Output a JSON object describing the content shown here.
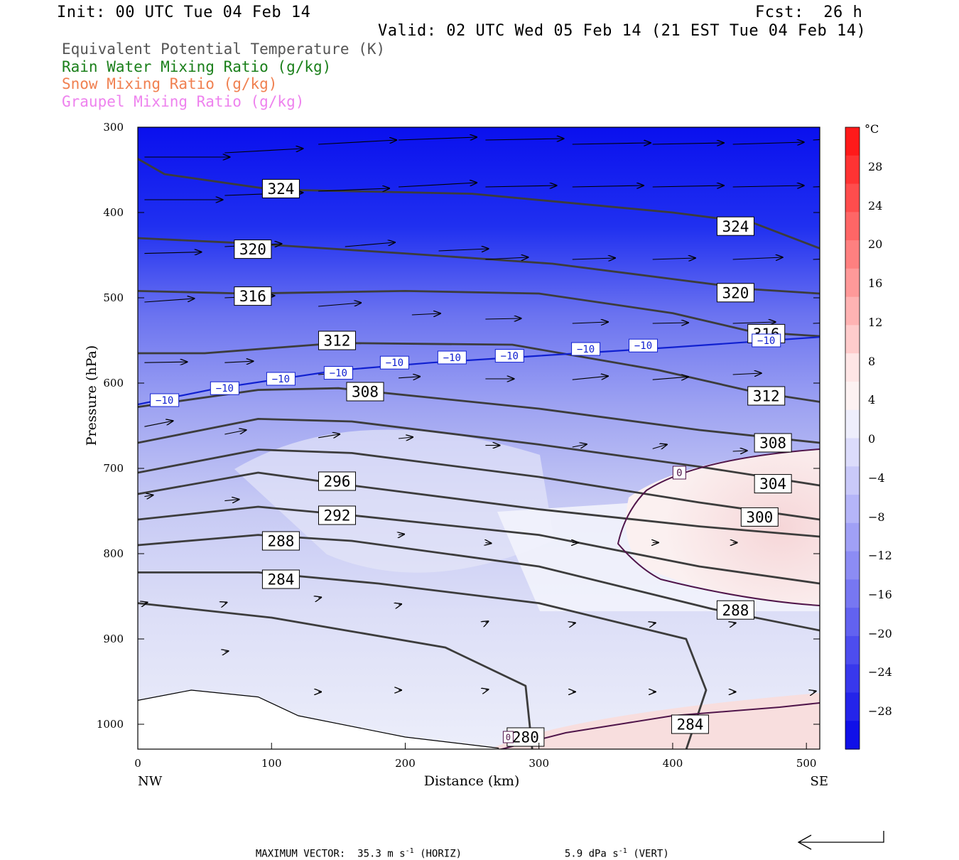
{
  "header": {
    "init": "Init: 00 UTC Tue 04 Feb 14",
    "fcst": "Fcst:  26 h",
    "valid": "Valid: 02 UTC Wed 05 Feb 14 (21 EST Tue 04 Feb 14)"
  },
  "legend": [
    {
      "label": "Equivalent Potential Temperature (K)",
      "color": "#555555"
    },
    {
      "label": "Rain Water Mixing Ratio (g/kg)",
      "color": "#1a7f1a"
    },
    {
      "label": "Snow Mixing Ratio (g/kg)",
      "color": "#f08050"
    },
    {
      "label": "Graupel Mixing Ratio (g/kg)",
      "color": "#ee82ee"
    }
  ],
  "colorbar": {
    "unit": "°C",
    "ticks": [
      "28",
      "24",
      "20",
      "16",
      "12",
      "8",
      "4",
      "0",
      "−4",
      "−8",
      "−12",
      "−16",
      "−20",
      "−24",
      "−28"
    ]
  },
  "footer": {
    "max_vector": "MAXIMUM VECTOR:  35.3 m s",
    "horiz": "(HORIZ)",
    "vert_value": "5.9 dPa s",
    "vert": "(VERT)",
    "exp": "-1"
  },
  "chart_data": {
    "type": "contour-cross-section",
    "xlabel": "Distance (km)",
    "ylabel": "Pressure (hPa)",
    "xlim": [
      0,
      510
    ],
    "ylim": [
      1030,
      300
    ],
    "x_ticks": [
      0,
      100,
      200,
      300,
      400,
      500
    ],
    "y_ticks": [
      300,
      400,
      500,
      600,
      700,
      800,
      900,
      1000
    ],
    "x_end_labels": {
      "left": "NW",
      "right": "SE"
    },
    "theta_e_contours": [
      {
        "label": "324",
        "points": [
          [
            0,
            337
          ],
          [
            20,
            355
          ],
          [
            100,
            373
          ],
          [
            250,
            378
          ],
          [
            400,
            400
          ],
          [
            460,
            412
          ],
          [
            510,
            442
          ]
        ],
        "label_at": [
          107,
          372
        ],
        "label2_at": [
          447,
          416
        ]
      },
      {
        "label": "320",
        "points": [
          [
            0,
            430
          ],
          [
            80,
            436
          ],
          [
            200,
            448
          ],
          [
            310,
            460
          ],
          [
            400,
            478
          ],
          [
            460,
            490
          ],
          [
            510,
            495
          ]
        ],
        "label_at": [
          86,
          443
        ],
        "label2_at": [
          447,
          494
        ]
      },
      {
        "label": "316",
        "points": [
          [
            0,
            492
          ],
          [
            80,
            495
          ],
          [
            200,
            492
          ],
          [
            300,
            495
          ],
          [
            400,
            518
          ],
          [
            460,
            540
          ],
          [
            510,
            545
          ]
        ],
        "label_at": [
          86,
          498
        ],
        "label2_at": [
          470,
          542
        ]
      },
      {
        "label": "312",
        "points": [
          [
            0,
            565
          ],
          [
            50,
            565
          ],
          [
            150,
            553
          ],
          [
            280,
            555
          ],
          [
            390,
            585
          ],
          [
            460,
            610
          ],
          [
            510,
            622
          ]
        ],
        "label_at": [
          149,
          550
        ],
        "label2_at": [
          470,
          615
        ]
      },
      {
        "label": "308",
        "points": [
          [
            0,
            628
          ],
          [
            90,
            608
          ],
          [
            150,
            606
          ],
          [
            300,
            630
          ],
          [
            420,
            655
          ],
          [
            510,
            670
          ]
        ],
        "label_at": [
          170,
          610
        ],
        "label2_at": [
          475,
          670
        ]
      },
      {
        "label": "304",
        "points": [
          [
            0,
            670
          ],
          [
            90,
            642
          ],
          [
            160,
            645
          ],
          [
            300,
            672
          ],
          [
            420,
            698
          ],
          [
            510,
            720
          ]
        ],
        "label2_at": [
          475,
          718
        ]
      },
      {
        "label": "300",
        "points": [
          [
            0,
            705
          ],
          [
            90,
            678
          ],
          [
            160,
            682
          ],
          [
            300,
            710
          ],
          [
            420,
            740
          ],
          [
            510,
            760
          ]
        ],
        "label2_at": [
          465,
          757
        ]
      },
      {
        "label": "296",
        "points": [
          [
            0,
            730
          ],
          [
            90,
            705
          ],
          [
            160,
            720
          ],
          [
            300,
            748
          ],
          [
            420,
            768
          ],
          [
            510,
            780
          ]
        ],
        "label_at": [
          149,
          715
        ]
      },
      {
        "label": "292",
        "points": [
          [
            0,
            760
          ],
          [
            90,
            745
          ],
          [
            160,
            755
          ],
          [
            300,
            778
          ],
          [
            420,
            815
          ],
          [
            510,
            835
          ]
        ],
        "label_at": [
          149,
          755
        ]
      },
      {
        "label": "288",
        "points": [
          [
            0,
            790
          ],
          [
            90,
            778
          ],
          [
            160,
            785
          ],
          [
            300,
            815
          ],
          [
            430,
            865
          ],
          [
            510,
            890
          ]
        ],
        "label_at": [
          107,
          785
        ],
        "label2_at": [
          447,
          866
        ]
      },
      {
        "label": "284",
        "points": [
          [
            0,
            822
          ],
          [
            90,
            822
          ],
          [
            180,
            835
          ],
          [
            300,
            858
          ],
          [
            410,
            900
          ],
          [
            425,
            960
          ],
          [
            410,
            1030
          ]
        ],
        "label_at": [
          107,
          830
        ],
        "label2_at": [
          413,
          1000
        ]
      },
      {
        "label": "280",
        "points": [
          [
            0,
            858
          ],
          [
            100,
            875
          ],
          [
            230,
            910
          ],
          [
            290,
            955
          ],
          [
            295,
            1030
          ]
        ],
        "label_at": [
          290,
          1015
        ]
      }
    ],
    "isotherm_minus10": {
      "label": "−10",
      "points": [
        [
          0,
          625
        ],
        [
          60,
          606
        ],
        [
          150,
          585
        ],
        [
          220,
          576
        ],
        [
          300,
          568
        ],
        [
          400,
          558
        ],
        [
          510,
          546
        ]
      ]
    },
    "isotherm_0": {
      "label": "0",
      "points": [
        [
          380,
          700
        ],
        [
          420,
          688
        ],
        [
          480,
          683
        ],
        [
          510,
          680
        ]
      ]
    },
    "isotherm_0_lower": {
      "points": [
        [
          270,
          1030
        ],
        [
          320,
          1010
        ],
        [
          400,
          990
        ],
        [
          480,
          980
        ],
        [
          510,
          975
        ]
      ]
    },
    "terrain": [
      [
        0,
        972
      ],
      [
        40,
        960
      ],
      [
        90,
        968
      ],
      [
        120,
        990
      ],
      [
        200,
        1015
      ],
      [
        270,
        1028
      ]
    ]
  }
}
